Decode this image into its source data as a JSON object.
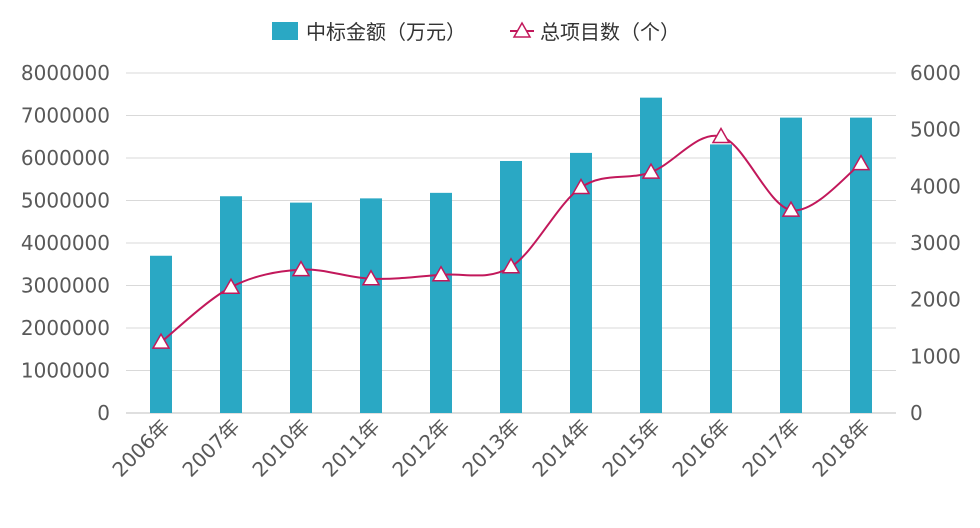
{
  "chart_data": {
    "type": "bar",
    "categories": [
      "2006年",
      "2007年",
      "2010年",
      "2011年",
      "2012年",
      "2013年",
      "2014年",
      "2015年",
      "2016年",
      "2017年",
      "2018年"
    ],
    "series": [
      {
        "name": "中标金额（万元）",
        "type": "bar",
        "axis": "left",
        "color": "#2AA8C4",
        "values": [
          3700000,
          5100000,
          4950000,
          5050000,
          5180000,
          5930000,
          6120000,
          7420000,
          6320000,
          6950000,
          6950000
        ]
      },
      {
        "name": "总项目数（个）",
        "type": "line",
        "axis": "right",
        "color": "#C2185B",
        "values": [
          1250,
          2220,
          2530,
          2370,
          2440,
          2580,
          3980,
          4250,
          4880,
          3580,
          4400
        ]
      }
    ],
    "y_left": {
      "range": [
        0,
        8000000
      ],
      "ticks": [
        "0",
        "1000000",
        "2000000",
        "3000000",
        "4000000",
        "5000000",
        "6000000",
        "7000000",
        "8000000"
      ]
    },
    "y_right": {
      "range": [
        0,
        6000
      ],
      "ticks": [
        "0",
        "1000",
        "2000",
        "3000",
        "4000",
        "5000",
        "6000"
      ]
    },
    "grid": true,
    "legend_position": "top"
  }
}
